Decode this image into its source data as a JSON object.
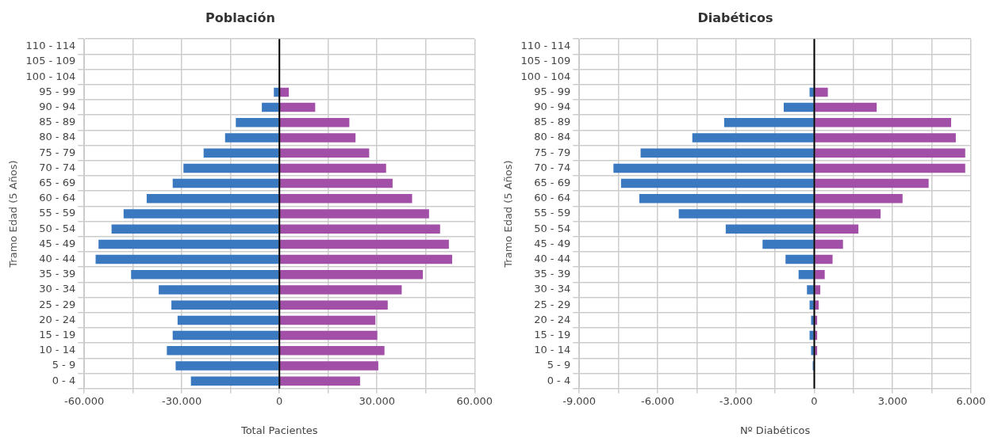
{
  "chart_data": [
    {
      "type": "bar",
      "title": "Población",
      "xlabel": "Total Pacientes",
      "ylabel": "Tramo Edad (5 Años)",
      "orientation": "horizontal",
      "stacked": true,
      "grid": true,
      "categories": [
        "110 - 114",
        "105 - 109",
        "100 - 104",
        "95 - 99",
        "90 - 94",
        "85 - 89",
        "80 - 84",
        "75 - 79",
        "70 - 74",
        "65 - 69",
        "60 - 64",
        "55 - 59",
        "50 - 54",
        "45 - 49",
        "40 - 44",
        "35 - 39",
        "30 - 34",
        "25 - 29",
        "20 - 24",
        "15 - 19",
        "10 - 14",
        "5 - 9",
        "0 - 4"
      ],
      "series": [
        {
          "color": "#3a78bf",
          "values": [
            0,
            0,
            0,
            -1700,
            -5400,
            -13400,
            -16700,
            -23300,
            -29500,
            -32800,
            -40800,
            -47900,
            -51600,
            -55600,
            -56500,
            -45600,
            -37100,
            -33200,
            -31300,
            -32800,
            -34600,
            -31900,
            -27200
          ]
        },
        {
          "color": "#a24fa8",
          "values": [
            0,
            0,
            0,
            2900,
            11000,
            21500,
            23400,
            27600,
            32800,
            34800,
            40800,
            46000,
            49400,
            52100,
            53100,
            44100,
            37600,
            33300,
            29500,
            30100,
            32300,
            30400,
            24800
          ]
        }
      ],
      "xlim": [
        -60000,
        60000
      ],
      "xticks": [
        {
          "value": -60000,
          "label": "-60.000"
        },
        {
          "value": -45000,
          "label": null
        },
        {
          "value": -30000,
          "label": "-30.000"
        },
        {
          "value": -15000,
          "label": null
        },
        {
          "value": 0,
          "label": "0"
        },
        {
          "value": 15000,
          "label": null
        },
        {
          "value": 30000,
          "label": "30.000"
        },
        {
          "value": 45000,
          "label": null
        },
        {
          "value": 60000,
          "label": "60.000"
        }
      ],
      "ref_lines": [
        {
          "axis": "x",
          "value": 0,
          "color": "#000000"
        }
      ]
    },
    {
      "type": "bar",
      "title": "Diabéticos",
      "xlabel": "Nº Diabéticos",
      "ylabel": "Tramo Edad (5 Años)",
      "orientation": "horizontal",
      "stacked": true,
      "grid": true,
      "categories": [
        "110 - 114",
        "105 - 109",
        "100 - 104",
        "95 - 99",
        "90 - 94",
        "85 - 89",
        "80 - 84",
        "75 - 79",
        "70 - 74",
        "65 - 69",
        "60 - 64",
        "55 - 59",
        "50 - 54",
        "45 - 49",
        "40 - 44",
        "35 - 39",
        "30 - 34",
        "25 - 29",
        "20 - 24",
        "15 - 19",
        "10 - 14",
        "5 - 9",
        "0 - 4"
      ],
      "series": [
        {
          "color": "#3a78bf",
          "values": [
            0,
            0,
            0,
            -180,
            -1170,
            -3450,
            -4670,
            -6650,
            -7690,
            -7400,
            -6700,
            -5190,
            -3390,
            -1980,
            -1100,
            -600,
            -280,
            -180,
            -120,
            -180,
            -120,
            -60,
            0
          ]
        },
        {
          "color": "#a24fa8",
          "values": [
            0,
            0,
            0,
            520,
            2390,
            5240,
            5420,
            5780,
            5780,
            4380,
            3380,
            2540,
            1690,
            1100,
            700,
            400,
            230,
            170,
            110,
            110,
            110,
            0,
            0
          ]
        }
      ],
      "xlim": [
        -9000,
        6000
      ],
      "xticks": [
        {
          "value": -9000,
          "label": "-9.000"
        },
        {
          "value": -7500,
          "label": null
        },
        {
          "value": -6000,
          "label": "-6.000"
        },
        {
          "value": -4500,
          "label": null
        },
        {
          "value": -3000,
          "label": "-3.000"
        },
        {
          "value": -1500,
          "label": null
        },
        {
          "value": 0,
          "label": "0"
        },
        {
          "value": 1500,
          "label": null
        },
        {
          "value": 3000,
          "label": "3.000"
        },
        {
          "value": 4500,
          "label": null
        },
        {
          "value": 6000,
          "label": "6.000"
        }
      ],
      "ref_lines": [
        {
          "axis": "x",
          "value": 0,
          "color": "#000000"
        }
      ]
    }
  ]
}
